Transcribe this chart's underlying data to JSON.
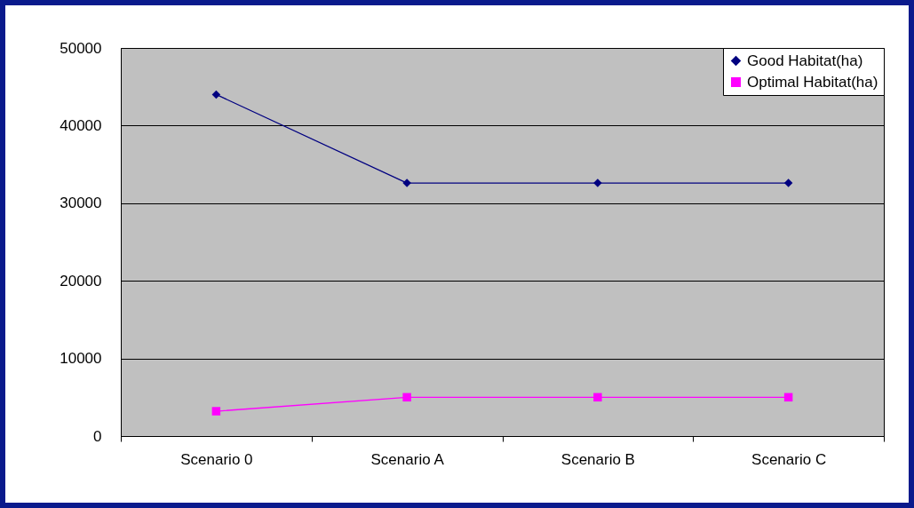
{
  "chart_data": {
    "type": "line",
    "categories": [
      "Scenario 0",
      "Scenario A",
      "Scenario B",
      "Scenario C"
    ],
    "series": [
      {
        "name": "Good Habitat(ha)",
        "color": "#000080",
        "marker": "diamond",
        "values": [
          44000,
          32600,
          32600,
          32600
        ]
      },
      {
        "name": "Optimal Habitat(ha)",
        "color": "#ff00ff",
        "marker": "square",
        "values": [
          3200,
          5000,
          5000,
          5000
        ]
      }
    ],
    "ylim": [
      0,
      50000
    ],
    "yticks": [
      0,
      10000,
      20000,
      30000,
      40000,
      50000
    ],
    "grid": "y",
    "legend": "top right"
  }
}
